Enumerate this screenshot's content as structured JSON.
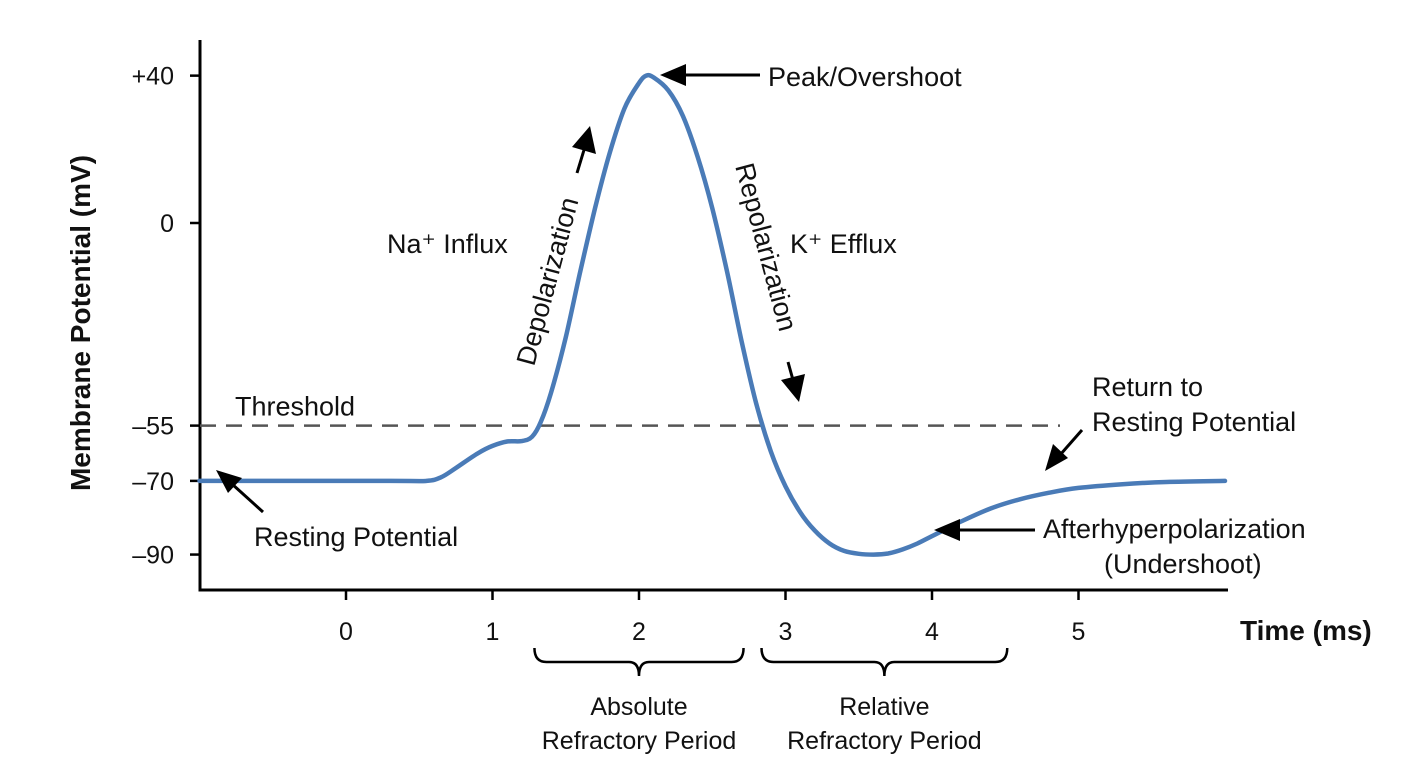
{
  "chart_data": {
    "type": "line",
    "xlabel": "Time (ms)",
    "ylabel": "Membrane Potential (mV)",
    "x_ticks": [
      0,
      1,
      2,
      3,
      4,
      5
    ],
    "y_ticks": [
      {
        "value": 40,
        "label": "+40"
      },
      {
        "value": 0,
        "label": "0"
      },
      {
        "value": -55,
        "label": "–55"
      },
      {
        "value": -70,
        "label": "–70"
      },
      {
        "value": -90,
        "label": "–90"
      }
    ],
    "threshold": {
      "value": -55,
      "label": "Threshold"
    },
    "series": [
      {
        "color": "#4a7bb7",
        "points": [
          [
            -1.0,
            -70
          ],
          [
            0.3,
            -70
          ],
          [
            0.55,
            -70
          ],
          [
            0.65,
            -69
          ],
          [
            0.75,
            -66.5
          ],
          [
            0.9,
            -62.5
          ],
          [
            1.0,
            -60.5
          ],
          [
            1.1,
            -59.3
          ],
          [
            1.2,
            -59.2
          ],
          [
            1.27,
            -58
          ],
          [
            1.33,
            -54
          ],
          [
            1.4,
            -46
          ],
          [
            1.5,
            -31
          ],
          [
            1.6,
            -13
          ],
          [
            1.7,
            4
          ],
          [
            1.8,
            19
          ],
          [
            1.9,
            31
          ],
          [
            2.0,
            38
          ],
          [
            2.05,
            40
          ],
          [
            2.1,
            39.5
          ],
          [
            2.2,
            36
          ],
          [
            2.3,
            29
          ],
          [
            2.4,
            18
          ],
          [
            2.5,
            4
          ],
          [
            2.6,
            -13
          ],
          [
            2.7,
            -32
          ],
          [
            2.8,
            -49
          ],
          [
            2.9,
            -62
          ],
          [
            3.0,
            -71.5
          ],
          [
            3.1,
            -78.5
          ],
          [
            3.2,
            -83.5
          ],
          [
            3.3,
            -87
          ],
          [
            3.4,
            -89
          ],
          [
            3.5,
            -89.8
          ],
          [
            3.6,
            -90
          ],
          [
            3.7,
            -89.7
          ],
          [
            3.8,
            -88.6
          ],
          [
            3.9,
            -87
          ],
          [
            4.0,
            -85
          ],
          [
            4.2,
            -81
          ],
          [
            4.4,
            -77.5
          ],
          [
            4.6,
            -75
          ],
          [
            4.8,
            -73.2
          ],
          [
            5.0,
            -71.9
          ],
          [
            5.3,
            -70.9
          ],
          [
            5.6,
            -70.3
          ],
          [
            6.0,
            -70
          ]
        ]
      }
    ],
    "annotations": {
      "peak": "Peak/Overshoot",
      "na_influx": "Na⁺ Influx",
      "k_efflux": "K⁺ Efflux",
      "depolarization": "Depolarization",
      "repolarization": "Repolarization",
      "resting": "Resting Potential",
      "return_line1": "Return to",
      "return_line2": "Resting Potential",
      "ahp_line1": "Afterhyperpolarization",
      "ahp_line2": "(Undershoot)"
    },
    "periods": [
      {
        "line1": "Absolute",
        "line2": "Refractory Period",
        "x_start": 1.3,
        "x_end": 2.7
      },
      {
        "line1": "Relative",
        "line2": "Refractory Period",
        "x_start": 2.85,
        "x_end": 4.5
      }
    ]
  }
}
